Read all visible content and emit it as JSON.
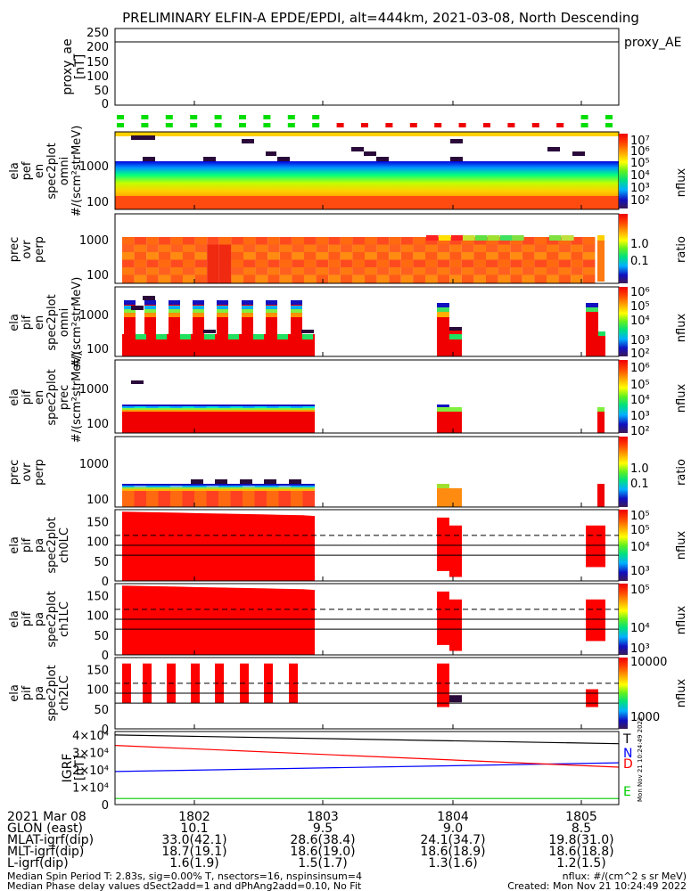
{
  "title": "PRELIMINARY ELFIN-A EPDE/EPDI, alt=444km, 2021-03-08, North Descending",
  "panels": [
    {
      "id": "proxy_ae",
      "ylabel_lines": [
        "proxy_ae",
        "[nT]"
      ],
      "ticks": [
        "250",
        "200",
        "150",
        "100",
        "50",
        "0"
      ],
      "right_label": "proxy_AE"
    },
    {
      "id": "epde_omni",
      "ylabel_lines": [
        "ela",
        "pef",
        "en",
        "spec2plot",
        "omni",
        "#/(scm²strMeV)"
      ],
      "ticks": [
        "1000",
        "100"
      ],
      "cbar_ticks": [
        "10⁷",
        "10⁶",
        "10⁵",
        "10⁴",
        "10³",
        "10²"
      ],
      "cbar_label": "nflux"
    },
    {
      "id": "epde_ratio",
      "ylabel_lines": [
        "prec",
        "ovr",
        "perp"
      ],
      "ticks": [
        "1000",
        "100"
      ],
      "cbar_ticks": [
        "1.0",
        "0.1"
      ],
      "cbar_label": "ratio"
    },
    {
      "id": "epdi_omni",
      "ylabel_lines": [
        "ela",
        "pif",
        "en",
        "spec2plot",
        "omni",
        "#/(scm²strMeV)"
      ],
      "ticks": [
        "1000",
        "100"
      ],
      "cbar_ticks": [
        "10⁶",
        "10⁵",
        "10⁴",
        "10³",
        "10²"
      ],
      "cbar_label": "nflux"
    },
    {
      "id": "epdi_prec",
      "ylabel_lines": [
        "ela",
        "pif",
        "en",
        "spec2plot",
        "prec",
        "#/(scm²strMeV)"
      ],
      "ticks": [
        "1000",
        "100"
      ],
      "cbar_ticks": [
        "10⁶",
        "10⁵",
        "10⁴",
        "10³",
        "10²"
      ],
      "cbar_label": "nflux"
    },
    {
      "id": "epdi_ratio",
      "ylabel_lines": [
        "prec",
        "ovr",
        "perp"
      ],
      "ticks": [
        "1000",
        "100"
      ],
      "cbar_ticks": [
        "1.0",
        "0.1"
      ],
      "cbar_label": "ratio"
    },
    {
      "id": "pa_ch0",
      "ylabel_lines": [
        "ela",
        "pif",
        "pa",
        "spec2plot",
        "ch0LC"
      ],
      "ticks": [
        "150",
        "100",
        "50",
        "0"
      ],
      "cbar_ticks": [
        "10⁵",
        "10⁵",
        "10⁴",
        "10³"
      ],
      "cbar_label": "nflux"
    },
    {
      "id": "pa_ch1",
      "ylabel_lines": [
        "ela",
        "pif",
        "pa",
        "spec2plot",
        "ch1LC"
      ],
      "ticks": [
        "150",
        "100",
        "50",
        "0"
      ],
      "cbar_ticks": [
        "10⁵",
        "10⁴",
        "10³"
      ],
      "cbar_label": "nflux"
    },
    {
      "id": "pa_ch2",
      "ylabel_lines": [
        "ela",
        "pif",
        "pa",
        "spec2plot",
        "ch2LC"
      ],
      "ticks": [
        "150",
        "100",
        "50",
        "0"
      ],
      "cbar_ticks": [
        "10000",
        "1000"
      ],
      "cbar_label": "nflux"
    },
    {
      "id": "igrf",
      "ylabel_lines": [
        "IGRF",
        "[nT]"
      ],
      "ticks": [
        "4×10⁴",
        "3×10⁴",
        "2×10⁴",
        "1×10⁴",
        "0"
      ],
      "legend": [
        "T",
        "N",
        "D",
        "E"
      ]
    }
  ],
  "ephemeris": {
    "rows": [
      {
        "label": "2021 Mar 08",
        "values": [
          "1802",
          "1803",
          "1804",
          "1805"
        ]
      },
      {
        "label": "GLON (east)",
        "values": [
          "10.1",
          "9.5",
          "9.0",
          "8.5"
        ]
      },
      {
        "label": "MLAT-igrf(dip)",
        "values": [
          "33.0(42.1)",
          "28.6(38.4)",
          "24.1(34.7)",
          "19.8(31.0)"
        ]
      },
      {
        "label": "MLT-igrf(dip)",
        "values": [
          "18.7(19.1)",
          "18.6(19.0)",
          "18.6(18.9)",
          "18.6(18.8)"
        ]
      },
      {
        "label": "L-igrf(dip)",
        "values": [
          "1.6(1.9)",
          "1.5(1.7)",
          "1.3(1.6)",
          "1.2(1.5)"
        ]
      }
    ]
  },
  "footer": {
    "line1_left": "Median Spin Period T: 2.83s, sig=0.00% T, nsectors=16, nspinsinsum=4",
    "line2_left": "Median Phase delay values dSect2add=1 and dPhAng2add=0.10, No Fit",
    "line1_right": "nflux: #/(cm^2 s sr MeV)",
    "line2_right": "Created: Mon Nov 21 10:24:49 2022",
    "vertical_stamp": "Mon Nov 21 10:24:49 2022"
  },
  "colors": {
    "T": "#000000",
    "N": "#0000ff",
    "D": "#ff0000",
    "E": "#00cc00",
    "fill": "#ff0000",
    "ok": "#00dd00",
    "bad": "#ee0000"
  },
  "chart_data": {
    "type": "heatmap",
    "x_ticks": [
      "1802",
      "1803",
      "1804",
      "1805"
    ],
    "proxy_ae": {
      "ylim": [
        0,
        260
      ],
      "value": 207
    },
    "igrf": {
      "ylim": [
        0,
        42000
      ],
      "series": [
        {
          "name": "T",
          "start": 40000,
          "end": 35000
        },
        {
          "name": "N",
          "start": 19000,
          "end": 24000
        },
        {
          "name": "D",
          "start": 34000,
          "end": 21500
        },
        {
          "name": "E",
          "start": 3500,
          "end": 3500
        }
      ]
    },
    "pa_reference_lines": {
      "dashed": 115,
      "solid": [
        90,
        65
      ]
    }
  }
}
